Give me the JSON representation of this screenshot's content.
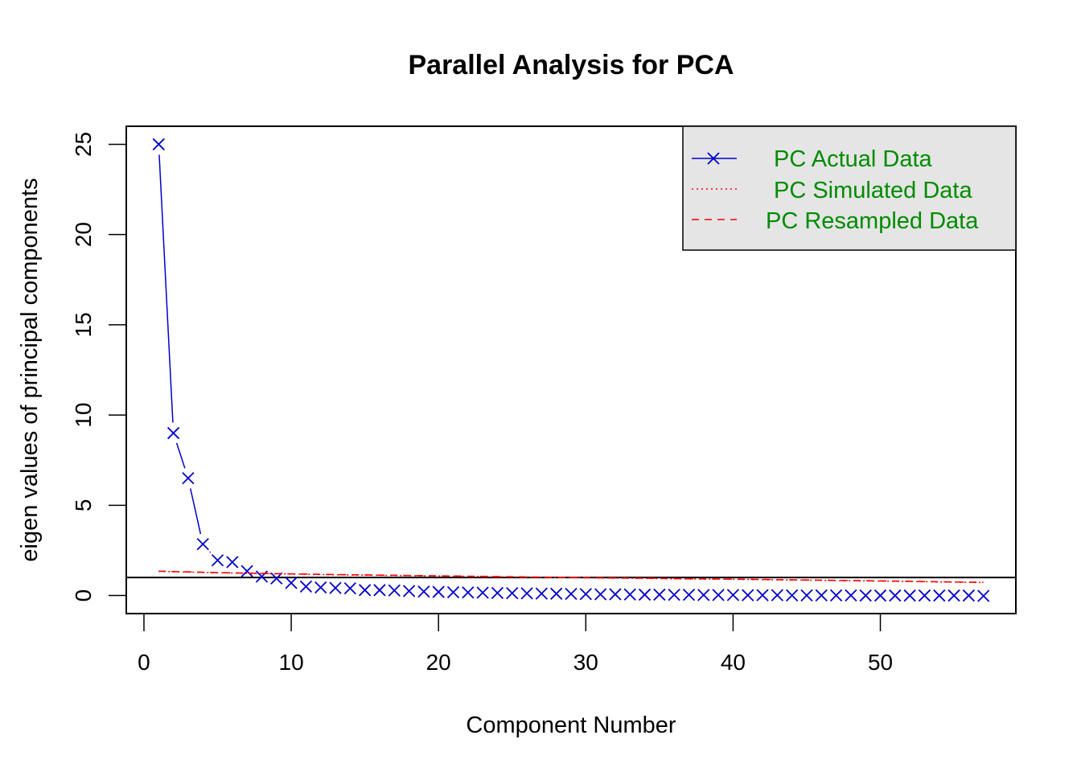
{
  "chart_data": {
    "type": "line",
    "title": "Parallel Analysis for PCA",
    "xlabel": "Component Number",
    "ylabel": "eigen values of principal components",
    "xlim": [
      -1.2,
      59.2
    ],
    "ylim": [
      -1.0,
      26.0
    ],
    "x_ticks": [
      0,
      10,
      20,
      30,
      40,
      50
    ],
    "y_ticks": [
      0,
      5,
      10,
      15,
      20,
      25
    ],
    "reference_line_y": 1,
    "legend": {
      "position": "top-right",
      "background": "#e5e5e5",
      "entries": [
        "PC  Actual Data",
        "PC  Simulated Data",
        "PC  Resampled Data"
      ]
    },
    "series": [
      {
        "name": "PC  Actual Data",
        "color": "#0000cd",
        "style": "solid-with-x-markers",
        "x": [
          1,
          2,
          3,
          4,
          5,
          6,
          7,
          8,
          9,
          10,
          11,
          12,
          13,
          14,
          15,
          16,
          17,
          18,
          19,
          20,
          21,
          22,
          23,
          24,
          25,
          26,
          27,
          28,
          29,
          30,
          31,
          32,
          33,
          34,
          35,
          36,
          37,
          38,
          39,
          40,
          41,
          42,
          43,
          44,
          45,
          46,
          47,
          48,
          49,
          50,
          51,
          52,
          53,
          54,
          55,
          56,
          57
        ],
        "values": [
          25.0,
          9.0,
          6.5,
          2.85,
          1.95,
          1.85,
          1.35,
          1.05,
          0.95,
          0.7,
          0.5,
          0.45,
          0.42,
          0.4,
          0.3,
          0.3,
          0.28,
          0.25,
          0.22,
          0.2,
          0.18,
          0.17,
          0.16,
          0.14,
          0.13,
          0.12,
          0.11,
          0.1,
          0.09,
          0.08,
          0.07,
          0.07,
          0.06,
          0.05,
          0.05,
          0.04,
          0.04,
          0.03,
          0.03,
          0.03,
          0.02,
          0.02,
          0.02,
          0.01,
          0.01,
          0.01,
          0.01,
          0.01,
          0.0,
          0.0,
          0.0,
          0.0,
          0.0,
          0.0,
          0.0,
          0.0,
          -0.02
        ]
      },
      {
        "name": "PC  Simulated Data",
        "color": "#ff0000",
        "style": "dotted",
        "x": [
          1,
          3,
          5,
          7,
          10,
          13,
          16,
          19,
          22,
          25,
          28,
          31,
          34,
          37,
          40,
          43,
          46,
          49,
          52,
          55,
          57
        ],
        "values": [
          1.34,
          1.3,
          1.26,
          1.23,
          1.19,
          1.15,
          1.12,
          1.09,
          1.06,
          1.03,
          1.0,
          0.97,
          0.95,
          0.92,
          0.9,
          0.87,
          0.84,
          0.81,
          0.78,
          0.74,
          0.72
        ]
      },
      {
        "name": "PC  Resampled Data",
        "color": "#ff0000",
        "style": "dashed",
        "x": [
          1,
          3,
          5,
          7,
          10,
          13,
          16,
          19,
          22,
          25,
          28,
          31,
          34,
          37,
          40,
          43,
          46,
          49,
          52,
          55,
          57
        ],
        "values": [
          1.35,
          1.31,
          1.27,
          1.24,
          1.2,
          1.16,
          1.13,
          1.1,
          1.07,
          1.04,
          1.01,
          0.98,
          0.96,
          0.93,
          0.91,
          0.88,
          0.85,
          0.82,
          0.79,
          0.75,
          0.73
        ]
      }
    ]
  }
}
